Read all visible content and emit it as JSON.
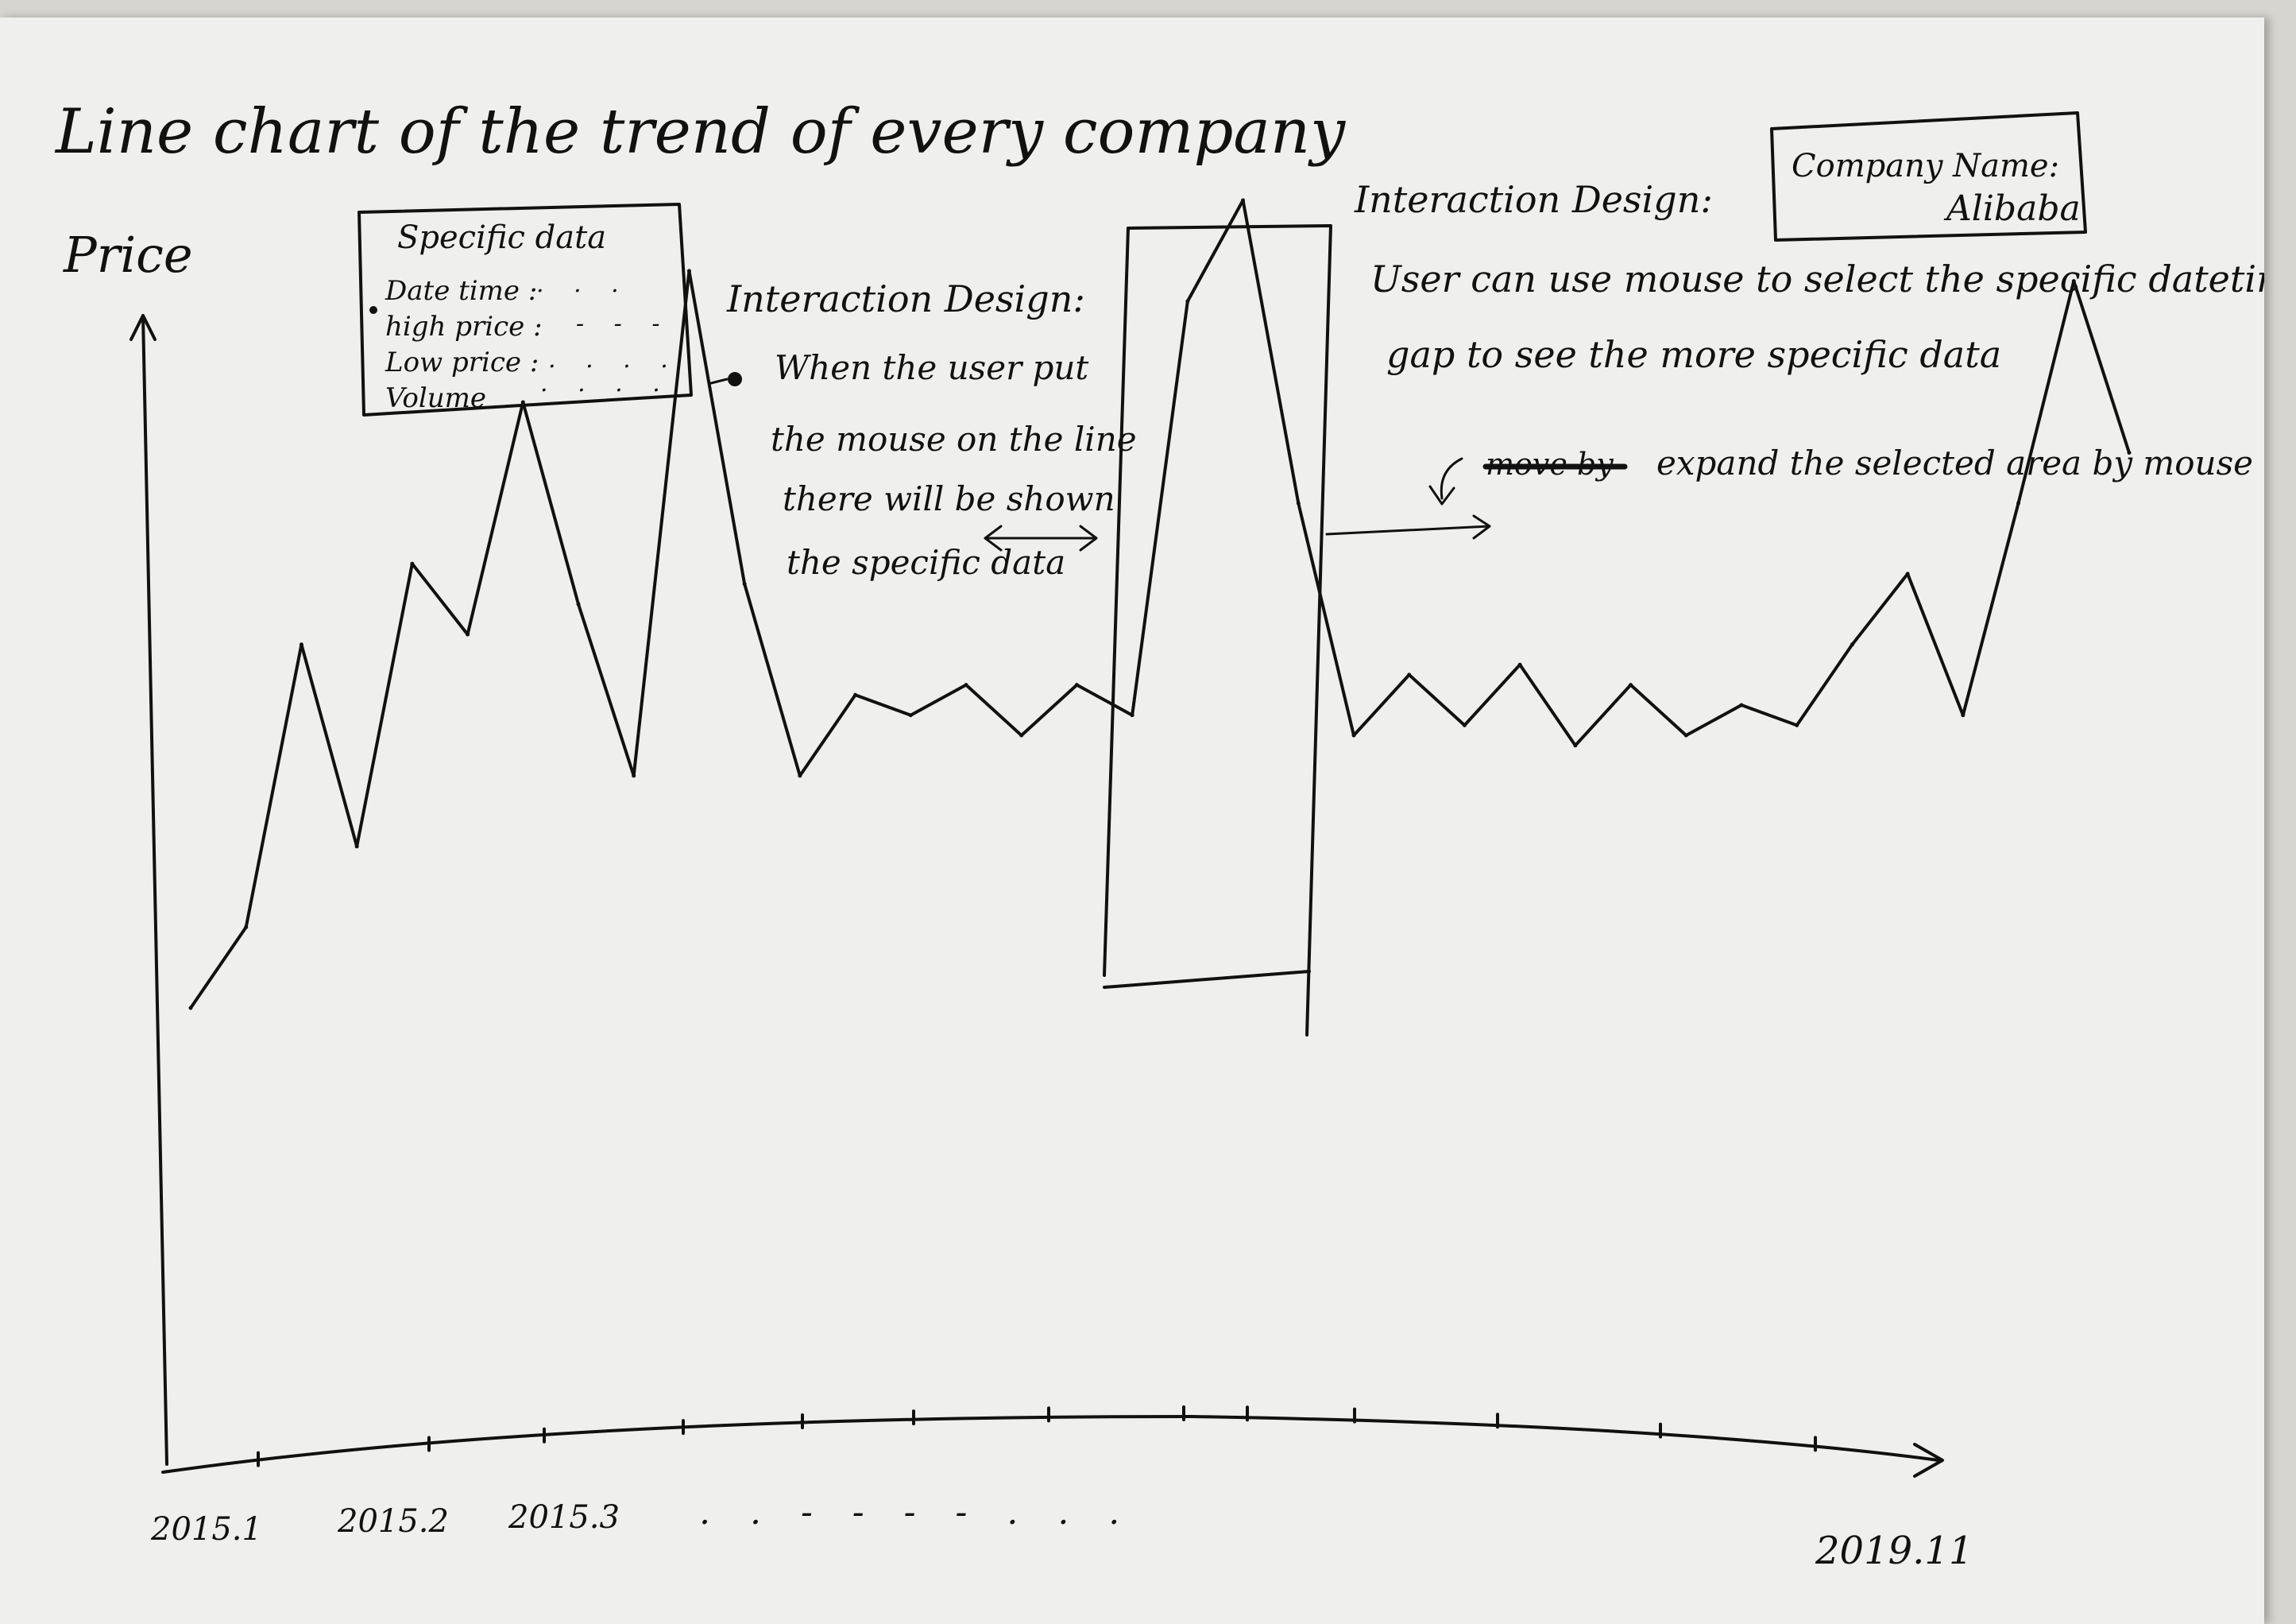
{
  "title": "Line chart of the trend of every company",
  "y_axis_label": "Price",
  "tooltip": {
    "heading": "Specific data",
    "fields": [
      "Date time :",
      "high price :",
      "Low price :",
      "Volume"
    ]
  },
  "interaction_1": {
    "heading": "Interaction Design:",
    "lines": [
      "When the user put",
      "the mouse on the line",
      "there will be shown",
      "the specific data"
    ]
  },
  "interaction_2": {
    "heading": "Interaction Design:",
    "lines": [
      "User can use mouse to select the specific datetime",
      "gap to see the more specific data"
    ],
    "struck_text": "move by",
    "expand_note": "expand the selected area by mouse"
  },
  "company_box": {
    "label": "Company Name:",
    "value": "Alibaba"
  },
  "x_ticks": [
    "2015.1",
    "2015.2",
    "2015.3",
    "2019.11"
  ],
  "x_ellipsis": ". .  - - - -  . .   .",
  "chart_data": {
    "type": "line",
    "xlabel": "",
    "ylabel": "Price",
    "x_range": [
      "2015.1",
      "2019.11"
    ],
    "series": [
      {
        "values": [
          20,
          28,
          56,
          36,
          64,
          57,
          80,
          60,
          43,
          93,
          62,
          43,
          51,
          49,
          52,
          47,
          52,
          49,
          90,
          100,
          70,
          47,
          53,
          48,
          54,
          46,
          52,
          47,
          50,
          48,
          56,
          63,
          49,
          70,
          92,
          75
        ]
      }
    ]
  },
  "colors": {
    "paper": "#efefed",
    "background": "#d8d5d0",
    "ink": "#111111"
  }
}
